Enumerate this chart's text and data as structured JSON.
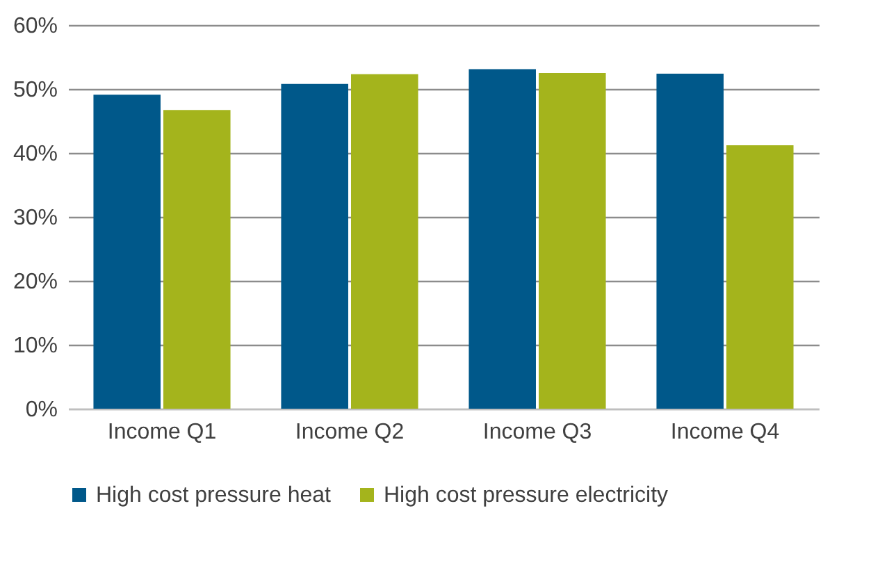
{
  "chart_data": {
    "type": "bar",
    "categories": [
      "Income Q1",
      "Income Q2",
      "Income Q3",
      "Income Q4"
    ],
    "series": [
      {
        "name": "High cost pressure heat",
        "color": "#00588a",
        "values": [
          49.1,
          50.8,
          53.1,
          52.4
        ]
      },
      {
        "name": "High cost pressure electricity",
        "color": "#a4b41c",
        "values": [
          46.7,
          52.3,
          52.5,
          41.2
        ]
      }
    ],
    "ylim": [
      0,
      60
    ],
    "yticks": [
      {
        "value": 0,
        "label": "0%"
      },
      {
        "value": 10,
        "label": "10%"
      },
      {
        "value": 20,
        "label": "20%"
      },
      {
        "value": 30,
        "label": "30%"
      },
      {
        "value": 40,
        "label": "40%"
      },
      {
        "value": 50,
        "label": "50%"
      },
      {
        "value": 60,
        "label": "60%"
      }
    ],
    "grid": "y",
    "legend": "bottom"
  }
}
